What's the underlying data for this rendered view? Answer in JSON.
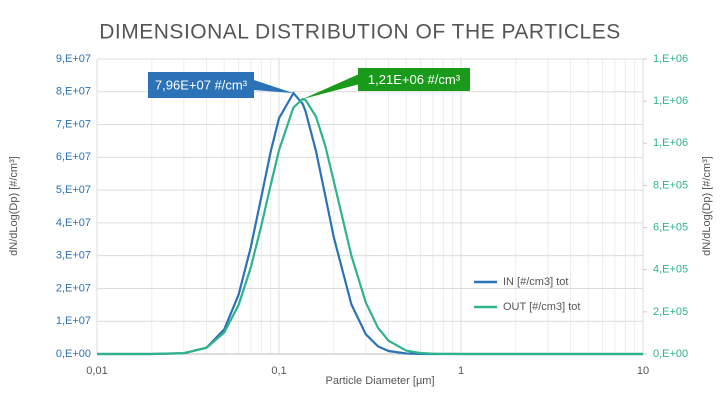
{
  "chart_data": {
    "type": "line",
    "title": "DIMENSIONAL DISTRIBUTION OF THE PARTICLES",
    "x_label": "Particle Diameter [µm]",
    "y_label": "dN/dLog(Dp) [#/cm³]",
    "y2_label": "dN/dLog(Dp) [#/cm³]",
    "x_scale": "log",
    "x": [
      0.01,
      0.02,
      0.03,
      0.04,
      0.05,
      0.06,
      0.07,
      0.08,
      0.09,
      0.1,
      0.12,
      0.135,
      0.14,
      0.16,
      0.18,
      0.2,
      0.25,
      0.3,
      0.35,
      0.4,
      0.5,
      0.6,
      0.7,
      1,
      2,
      5,
      10
    ],
    "series": [
      {
        "name": "IN [#/cm3] tot",
        "color": "#2b72b6",
        "axis": "y",
        "values": [
          0,
          4000,
          210000,
          1940000,
          7500000,
          18100000,
          32600000,
          48000000,
          61700000,
          71900000,
          79600000,
          76300000,
          74000000,
          61700000,
          48000000,
          35600000,
          15100000,
          6000000,
          2330000,
          910000,
          150000,
          28000,
          5000,
          0,
          0,
          0,
          0
        ]
      },
      {
        "name": "OUT [#/cm3] tot",
        "color": "#2fb38c",
        "axis": "y2",
        "values": [
          0,
          130,
          4200,
          29800,
          102000,
          233000,
          411000,
          610000,
          802000,
          967000,
          1170000,
          1210000,
          1206000,
          1125000,
          984000,
          820000,
          466000,
          244000,
          124000,
          63000,
          16000,
          4600,
          1300,
          0,
          0,
          0,
          0
        ]
      }
    ],
    "annotations": [
      {
        "text": "7,96E+07 #/cm³",
        "color": "#2b72b6"
      },
      {
        "text": "1,21E+06 #/cm³",
        "color": "#1a9a1a"
      }
    ],
    "xlim": [
      0.01,
      10
    ],
    "xticks": [
      {
        "value": 0.01,
        "label": "0,01"
      },
      {
        "value": 0.1,
        "label": "0,1"
      },
      1,
      10
    ],
    "ylim": [
      0,
      90000000
    ],
    "yticks": [
      {
        "value": 0,
        "label": "0,E+00"
      },
      {
        "value": 10000000,
        "label": "1,E+07"
      },
      {
        "value": 20000000,
        "label": "2,E+07"
      },
      {
        "value": 30000000,
        "label": "3,E+07"
      },
      {
        "value": 40000000,
        "label": "4,E+07"
      },
      {
        "value": 50000000,
        "label": "5,E+07"
      },
      {
        "value": 60000000,
        "label": "6,E+07"
      },
      {
        "value": 70000000,
        "label": "7,E+07"
      },
      {
        "value": 80000000,
        "label": "8,E+07"
      },
      {
        "value": 90000000,
        "label": "9,E+07"
      }
    ],
    "y2lim": [
      0,
      1400000
    ],
    "y2ticks": [
      {
        "value": 0,
        "label": "0,E+00"
      },
      {
        "value": 200000,
        "label": "2,E+05"
      },
      {
        "value": 400000,
        "label": "4,E+05"
      },
      {
        "value": 600000,
        "label": "6,E+05"
      },
      {
        "value": 800000,
        "label": "8,E+05"
      },
      {
        "value": 1000000,
        "label": "1,E+06"
      },
      {
        "value": 1200000,
        "label": "1,E+06"
      },
      {
        "value": 1400000,
        "label": "1,E+06"
      }
    ],
    "grid": true
  }
}
